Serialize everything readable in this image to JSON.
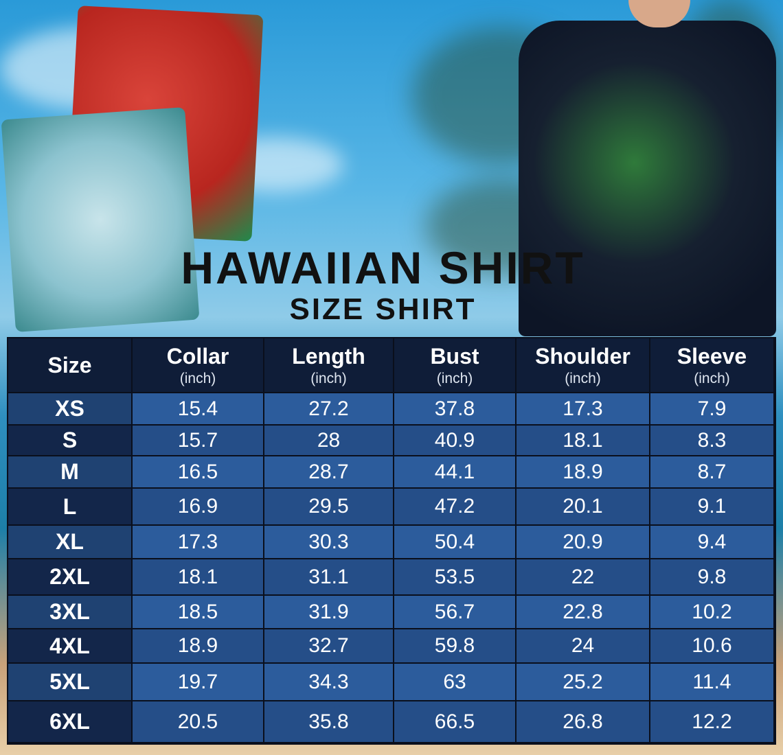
{
  "title": "HAWAIIAN SHIRT",
  "subtitle": "SIZE SHIRT",
  "columns": [
    {
      "label": "Size",
      "unit": ""
    },
    {
      "label": "Collar",
      "unit": "(inch)"
    },
    {
      "label": "Length",
      "unit": "(inch)"
    },
    {
      "label": "Bust",
      "unit": "(inch)"
    },
    {
      "label": "Shoulder",
      "unit": "(inch)"
    },
    {
      "label": "Sleeve",
      "unit": "(inch)"
    }
  ],
  "rows": [
    [
      "XS",
      "15.4",
      "27.2",
      "37.8",
      "17.3",
      "7.9"
    ],
    [
      "S",
      "15.7",
      "28",
      "40.9",
      "18.1",
      "8.3"
    ],
    [
      "M",
      "16.5",
      "28.7",
      "44.1",
      "18.9",
      "8.7"
    ],
    [
      "L",
      "16.9",
      "29.5",
      "47.2",
      "20.1",
      "9.1"
    ],
    [
      "XL",
      "17.3",
      "30.3",
      "50.4",
      "20.9",
      "9.4"
    ],
    [
      "2XL",
      "18.1",
      "31.1",
      "53.5",
      "22",
      "9.8"
    ],
    [
      "3XL",
      "18.5",
      "31.9",
      "56.7",
      "22.8",
      "10.2"
    ],
    [
      "4XL",
      "18.9",
      "32.7",
      "59.8",
      "24",
      "10.6"
    ],
    [
      "5XL",
      "19.7",
      "34.3",
      "63",
      "25.2",
      "11.4"
    ],
    [
      "6XL",
      "20.5",
      "35.8",
      "66.5",
      "26.8",
      "12.2"
    ]
  ],
  "colors": {
    "header_bg": "#0f1d38",
    "size_light": "#1f4272",
    "size_dark": "#13264a",
    "cell_light": "#2c5c9c",
    "cell_dark": "#254e88"
  }
}
